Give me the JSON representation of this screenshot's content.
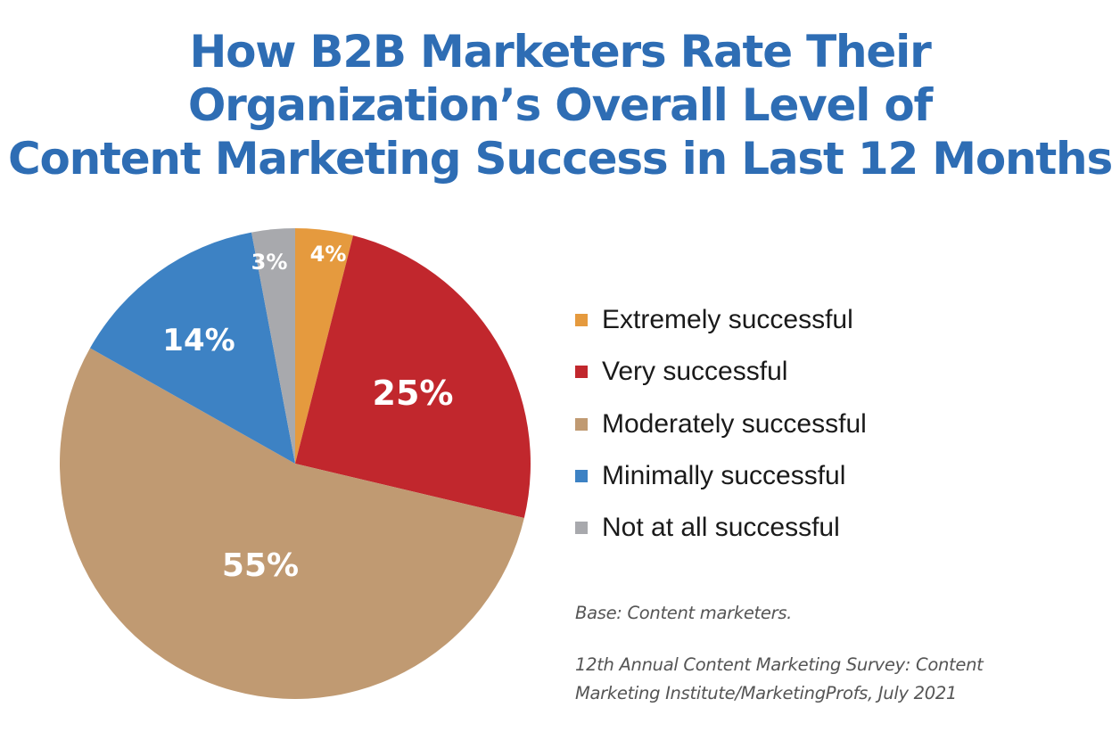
{
  "title": {
    "lines": [
      "How B2B Marketers Rate Their",
      "Organization’s Overall Level of",
      "Content Marketing Success in Last 12 Months"
    ]
  },
  "legend": {
    "items": [
      {
        "label": "Extremely successful",
        "color": "#e59a3e"
      },
      {
        "label": "Very successful",
        "color": "#c1272d"
      },
      {
        "label": "Moderately successful",
        "color": "#c09a72"
      },
      {
        "label": "Minimally successful",
        "color": "#3d82c4"
      },
      {
        "label": "Not at all successful",
        "color": "#a8a9ad"
      }
    ]
  },
  "slice_labels": [
    "4%",
    "25%",
    "55%",
    "14%",
    "3%"
  ],
  "footer": {
    "base": "Base: Content marketers.",
    "source_line1": "12th Annual Content Marketing Survey: Content",
    "source_line2": "Marketing Institute/MarketingProfs, July 2021"
  },
  "chart_data": {
    "type": "pie",
    "title": "How B2B Marketers Rate Their Organization’s Overall Level of Content Marketing Success in Last 12 Months",
    "categories": [
      "Extremely successful",
      "Very successful",
      "Moderately successful",
      "Minimally successful",
      "Not at all successful"
    ],
    "values": [
      4,
      25,
      55,
      14,
      3
    ],
    "unit": "%",
    "colors": [
      "#e59a3e",
      "#c1272d",
      "#c09a72",
      "#3d82c4",
      "#a8a9ad"
    ],
    "start_angle": "12 o'clock",
    "direction": "clockwise",
    "legend_position": "right",
    "notes": [
      "Base: Content marketers.",
      "12th Annual Content Marketing Survey: Content Marketing Institute/MarketingProfs, July 2021"
    ]
  }
}
